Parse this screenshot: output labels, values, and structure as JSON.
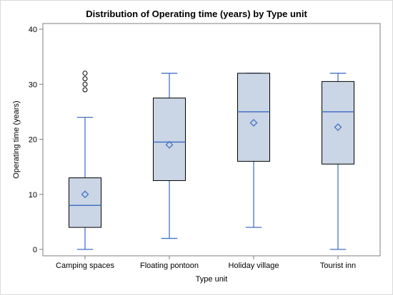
{
  "chart_data": {
    "type": "box",
    "title": "Distribution of Operating time (years) by Type unit",
    "xlabel": "Type unit",
    "ylabel": "Operating time (years)",
    "ylim": [
      0,
      40
    ],
    "yticks": [
      0,
      10,
      20,
      30,
      40
    ],
    "categories": [
      "Camping spaces",
      "Floating pontoon",
      "Holiday village",
      "Tourist inn"
    ],
    "boxes": [
      {
        "category": "Camping spaces",
        "min": 0,
        "q1": 4,
        "median": 8,
        "q3": 13,
        "max": 24,
        "mean": 10,
        "outliers": [
          29,
          30,
          31,
          32
        ]
      },
      {
        "category": "Floating pontoon",
        "min": 2,
        "q1": 12.5,
        "median": 19.5,
        "q3": 27.5,
        "max": 32,
        "mean": 19,
        "outliers": []
      },
      {
        "category": "Holiday village",
        "min": 4,
        "q1": 16,
        "median": 25,
        "q3": 32,
        "max": 32,
        "mean": 23,
        "outliers": []
      },
      {
        "category": "Tourist inn",
        "min": 0,
        "q1": 15.5,
        "median": 25,
        "q3": 30.5,
        "max": 32,
        "mean": 22.2,
        "outliers": []
      }
    ],
    "colors": {
      "box_fill": "#cad5e5",
      "line": "#4472c4",
      "outline": "#000000",
      "axis": "#7f7f7f"
    },
    "grid": false,
    "legend": "none"
  }
}
